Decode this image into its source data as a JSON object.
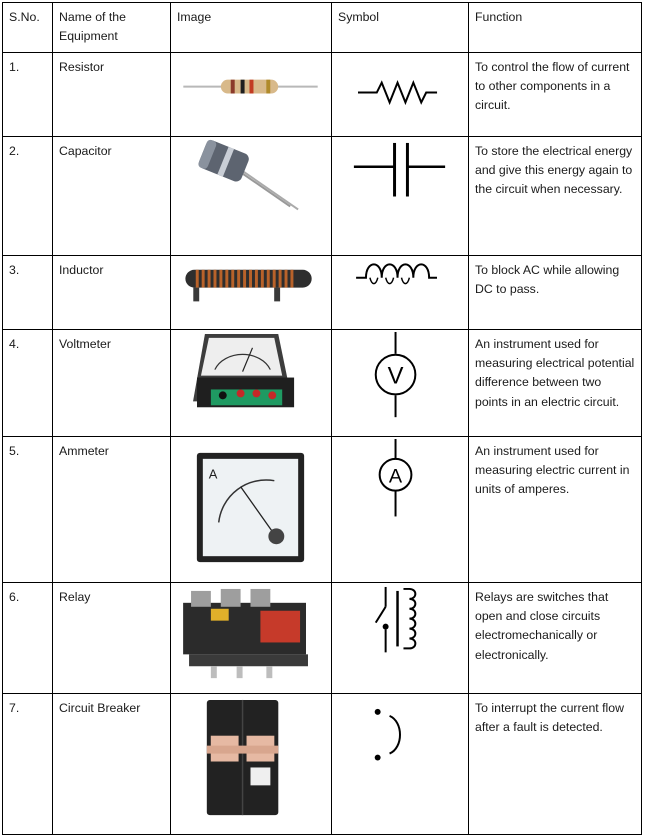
{
  "header": {
    "sno": "S.No.",
    "name": "Name of the Equipment",
    "image": "Image",
    "symbol": "Symbol",
    "function": "Function"
  },
  "rows": [
    {
      "sno": "1.",
      "name": "Resistor",
      "function": "To control the flow of current to other components in a circuit.",
      "icon": "resistor-icon"
    },
    {
      "sno": "2.",
      "name": "Capacitor",
      "function": "To store the electrical energy and give this energy again to the circuit when necessary.",
      "icon": "capacitor-icon"
    },
    {
      "sno": "3.",
      "name": "Inductor",
      "function": "To block AC while allowing DC to pass.",
      "icon": "inductor-icon"
    },
    {
      "sno": "4.",
      "name": "Voltmeter",
      "function": "An instrument used for measuring electrical potential difference between two points in an electric circuit.",
      "icon": "voltmeter-icon",
      "symbol_letter": "V"
    },
    {
      "sno": "5.",
      "name": "Ammeter",
      "function": "An instrument used for measuring electric current in units of amperes.",
      "icon": "ammeter-icon",
      "symbol_letter": "A"
    },
    {
      "sno": "6.",
      "name": "Relay",
      "function": "Relays are switches that open and close circuits electromechanically or electronically.",
      "icon": "relay-icon"
    },
    {
      "sno": "7.",
      "name": "Circuit Breaker",
      "function": "To interrupt the current flow after a fault is detected.",
      "icon": "circuit-breaker-icon"
    }
  ],
  "meter_labels": {
    "ammeter_face": "A"
  }
}
